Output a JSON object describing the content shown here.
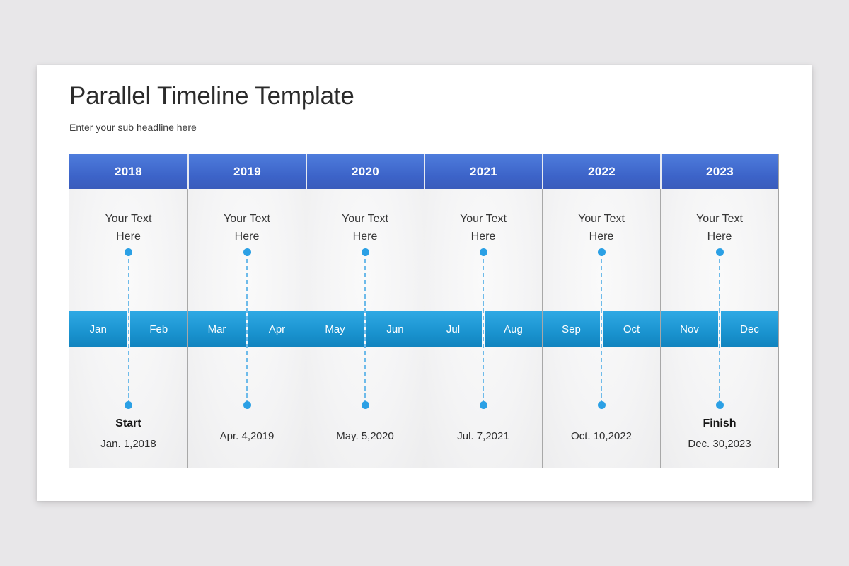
{
  "page": {
    "background_color": "#e8e7e9",
    "card_color": "#ffffff"
  },
  "header": {
    "title": "Parallel Timeline Template",
    "subtitle": "Enter your sub headline here"
  },
  "colors": {
    "year_header_gradient_top": "#4e7cdc",
    "year_header_gradient_bottom": "#3a5cbc",
    "month_band_gradient_top": "#2fa9e4",
    "month_band_gradient_bottom": "#1184bf",
    "dot_color": "#2ba0e5",
    "dashed_line_color": "#6ebbea",
    "cell_background": "#f5f5f6"
  },
  "timeline": {
    "columns": [
      {
        "year": "2018",
        "text": "Your Text Here",
        "months": [
          "Jan",
          "Feb"
        ],
        "label": "Start",
        "date": "Jan. 1,2018"
      },
      {
        "year": "2019",
        "text": "Your Text Here",
        "months": [
          "Mar",
          "Apr"
        ],
        "label": "",
        "date": "Apr. 4,2019"
      },
      {
        "year": "2020",
        "text": "Your Text Here",
        "months": [
          "May",
          "Jun"
        ],
        "label": "",
        "date": "May. 5,2020"
      },
      {
        "year": "2021",
        "text": "Your Text Here",
        "months": [
          "Jul",
          "Aug"
        ],
        "label": "",
        "date": "Jul. 7,2021"
      },
      {
        "year": "2022",
        "text": "Your Text Here",
        "months": [
          "Sep",
          "Oct"
        ],
        "label": "",
        "date": "Oct. 10,2022"
      },
      {
        "year": "2023",
        "text": "Your Text Here",
        "months": [
          "Nov",
          "Dec"
        ],
        "label": "Finish",
        "date": "Dec. 30,2023"
      }
    ]
  }
}
